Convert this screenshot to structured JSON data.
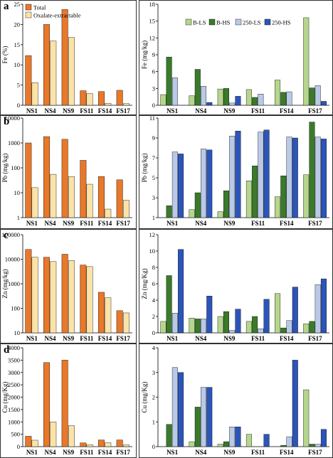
{
  "panels": [
    "a",
    "b",
    "c",
    "d"
  ],
  "chart_data": [
    {
      "id": "a-left",
      "panel": "a",
      "type": "bar",
      "scale": "linear",
      "categories": [
        "NS1",
        "NS4",
        "NS9",
        "FS11",
        "FS14",
        "FS17"
      ],
      "ylabel": "Fe (%)",
      "ylim": [
        0,
        25
      ],
      "yticks": [
        0,
        5,
        10,
        15,
        20,
        25
      ],
      "legend": "top-left",
      "series": [
        {
          "name": "Total",
          "color": "#e8782a",
          "values": [
            12.3,
            20.0,
            23.7,
            3.6,
            3.4,
            3.7
          ]
        },
        {
          "name": "Oxalate-extractable",
          "color": "#fbe3a8",
          "values": [
            5.6,
            15.9,
            16.8,
            2.9,
            0.5,
            0.4
          ]
        }
      ]
    },
    {
      "id": "a-right",
      "panel": "a",
      "type": "bar",
      "scale": "linear",
      "categories": [
        "NS1",
        "NS4",
        "NS9",
        "FS11",
        "FS14",
        "FS17"
      ],
      "ylabel": "Fe (mg/kg)",
      "ylim": [
        0,
        18
      ],
      "yticks": [
        0,
        3,
        6,
        9,
        12,
        15,
        18
      ],
      "legend": "top-center",
      "series": [
        {
          "name": "B-LS",
          "color": "#b5d68c",
          "values": [
            1.9,
            1.7,
            2.9,
            2.8,
            4.5,
            15.6
          ]
        },
        {
          "name": "B-HS",
          "color": "#3a7a2a",
          "values": [
            8.6,
            6.4,
            3.0,
            1.4,
            2.3,
            3.1
          ]
        },
        {
          "name": "250-LS",
          "color": "#b9c9e6",
          "values": [
            4.9,
            3.4,
            0.4,
            2.0,
            2.4,
            3.5
          ]
        },
        {
          "name": "250-HS",
          "color": "#2c55b8",
          "values": [
            0.0,
            0.5,
            1.6,
            0.0,
            0.0,
            0.7
          ]
        }
      ]
    },
    {
      "id": "b-left",
      "panel": "b",
      "type": "bar",
      "scale": "log",
      "categories": [
        "NS1",
        "NS4",
        "NS9",
        "FS11",
        "FS14",
        "FS17"
      ],
      "ylabel": "Pb (mg/kg)",
      "ylim": [
        1,
        10000
      ],
      "yticks": [
        1,
        10,
        100,
        1000,
        10000
      ],
      "series": [
        {
          "name": "Total",
          "color": "#e8782a",
          "values": [
            1000,
            1800,
            1400,
            200,
            45,
            33
          ]
        },
        {
          "name": "Oxalate-extractable",
          "color": "#fbe3a8",
          "values": [
            16,
            55,
            45,
            22,
            2.2,
            5
          ]
        }
      ]
    },
    {
      "id": "b-right",
      "panel": "b",
      "type": "bar",
      "scale": "linear",
      "categories": [
        "NS1",
        "NS4",
        "NS9",
        "FS11",
        "FS14",
        "FS17"
      ],
      "ylabel": "Pb (mg/kg)",
      "ylim": [
        1,
        11
      ],
      "yticks": [
        1,
        3,
        5,
        7,
        9,
        11
      ],
      "series": [
        {
          "name": "B-LS",
          "color": "#b5d68c",
          "values": [
            0.0,
            1.8,
            1.6,
            4.7,
            3.1,
            5.3
          ]
        },
        {
          "name": "B-HS",
          "color": "#3a7a2a",
          "values": [
            2.2,
            3.5,
            3.7,
            6.2,
            5.2,
            10.6
          ]
        },
        {
          "name": "250-LS",
          "color": "#b9c9e6",
          "values": [
            7.6,
            7.9,
            9.2,
            9.6,
            9.1,
            9.1
          ]
        },
        {
          "name": "250-HS",
          "color": "#2c55b8",
          "values": [
            7.4,
            7.8,
            9.7,
            9.8,
            9.0,
            8.9
          ]
        }
      ]
    },
    {
      "id": "c-left",
      "panel": "c",
      "type": "bar",
      "scale": "log",
      "categories": [
        "NS1",
        "NS4",
        "NS9",
        "FS11",
        "FS14",
        "FS17"
      ],
      "ylabel": "Zn (mg/kg)",
      "ylim": [
        10,
        100000
      ],
      "yticks": [
        10,
        100,
        1000,
        10000,
        100000
      ],
      "series": [
        {
          "name": "Total",
          "color": "#e8782a",
          "values": [
            25000,
            12000,
            16000,
            5800,
            450,
            80
          ]
        },
        {
          "name": "Oxalate-extractable",
          "color": "#fbe3a8",
          "values": [
            12000,
            8000,
            8800,
            5000,
            270,
            65
          ]
        }
      ]
    },
    {
      "id": "c-right",
      "panel": "c",
      "type": "bar",
      "scale": "linear",
      "categories": [
        "NS1",
        "NS4",
        "NS9",
        "FS11",
        "FS14",
        "FS17"
      ],
      "ylabel": "Zn (mg/Kg)",
      "ylim": [
        0,
        12
      ],
      "yticks": [
        0,
        2,
        4,
        6,
        8,
        10,
        12
      ],
      "series": [
        {
          "name": "B-LS",
          "color": "#b5d68c",
          "values": [
            1.4,
            1.8,
            2.0,
            1.4,
            4.8,
            1.1
          ]
        },
        {
          "name": "B-HS",
          "color": "#3a7a2a",
          "values": [
            7.0,
            1.7,
            2.6,
            2.0,
            0.6,
            1.4
          ]
        },
        {
          "name": "250-LS",
          "color": "#b9c9e6",
          "values": [
            2.4,
            1.7,
            0.3,
            0.5,
            1.5,
            5.9
          ]
        },
        {
          "name": "250-HS",
          "color": "#2c55b8",
          "values": [
            10.2,
            4.5,
            2.9,
            4.1,
            5.6,
            6.6
          ]
        }
      ]
    },
    {
      "id": "d-left",
      "panel": "d",
      "type": "bar",
      "scale": "linear",
      "categories": [
        "NS1",
        "NS4",
        "NS9",
        "FS11",
        "FS14",
        "FS17"
      ],
      "ylabel": "Cu (mg/Kg)",
      "ylim": [
        0,
        4000
      ],
      "yticks": [
        0,
        500,
        1000,
        1500,
        2000,
        2500,
        3000,
        3500,
        4000
      ],
      "series": [
        {
          "name": "Total",
          "color": "#e8782a",
          "values": [
            420,
            3400,
            3500,
            150,
            270,
            270
          ]
        },
        {
          "name": "Oxalate-extractable",
          "color": "#fbe3a8",
          "values": [
            260,
            1000,
            850,
            80,
            160,
            70
          ]
        }
      ]
    },
    {
      "id": "d-right",
      "panel": "d",
      "type": "bar",
      "scale": "linear",
      "categories": [
        "NS1",
        "NS4",
        "NS9",
        "FS11",
        "FS14",
        "FS17"
      ],
      "ylabel": "Cu (mg/Kg)",
      "ylim": [
        0,
        4
      ],
      "yticks": [
        0,
        1,
        2,
        3,
        4
      ],
      "series": [
        {
          "name": "B-LS",
          "color": "#b5d68c",
          "values": [
            0.0,
            0.2,
            0.1,
            0.5,
            0.0,
            2.3
          ]
        },
        {
          "name": "B-HS",
          "color": "#3a7a2a",
          "values": [
            0.9,
            1.6,
            0.2,
            0.0,
            0.05,
            0.1
          ]
        },
        {
          "name": "250-LS",
          "color": "#b9c9e6",
          "values": [
            3.2,
            2.4,
            0.8,
            0.0,
            0.4,
            0.1
          ]
        },
        {
          "name": "250-HS",
          "color": "#2c55b8",
          "values": [
            3.0,
            2.4,
            0.8,
            0.5,
            3.5,
            0.7
          ]
        }
      ]
    }
  ]
}
